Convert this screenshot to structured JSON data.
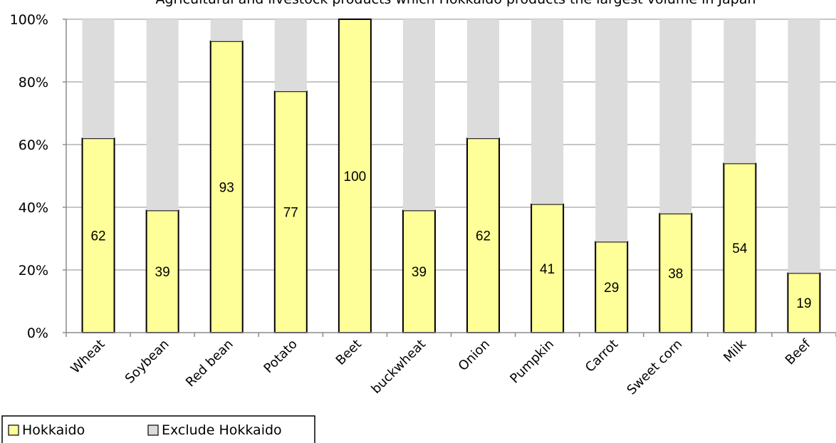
{
  "chart_data": {
    "type": "bar",
    "stacked": true,
    "percent": true,
    "title": "Agricultural and livestock products which Hokkaido products the largest volume in Japan",
    "categories": [
      "Wheat",
      "Soybean",
      "Red bean",
      "Potato",
      "Beet",
      "buckwheat",
      "Onion",
      "Pumpkin",
      "Carrot",
      "Sweet corn",
      "Milk",
      "Beef"
    ],
    "series": [
      {
        "name": "Hokkaido",
        "values": [
          62,
          39,
          93,
          77,
          100,
          39,
          62,
          41,
          29,
          38,
          54,
          19
        ],
        "color": "#ffff99"
      },
      {
        "name": "Exclude Hokkaido",
        "values": [
          38,
          61,
          7,
          23,
          0,
          61,
          38,
          59,
          71,
          62,
          46,
          81
        ],
        "color": "#dcdcdc"
      }
    ],
    "data_labels": [
      "62",
      "39",
      "93",
      "77",
      "100",
      "39",
      "62",
      "41",
      "29",
      "38",
      "54",
      "19"
    ],
    "yticks": [
      "0%",
      "20%",
      "40%",
      "60%",
      "80%",
      "100%"
    ],
    "ylim": [
      0,
      100
    ],
    "grid": true,
    "legend_position": "bottom-left"
  }
}
